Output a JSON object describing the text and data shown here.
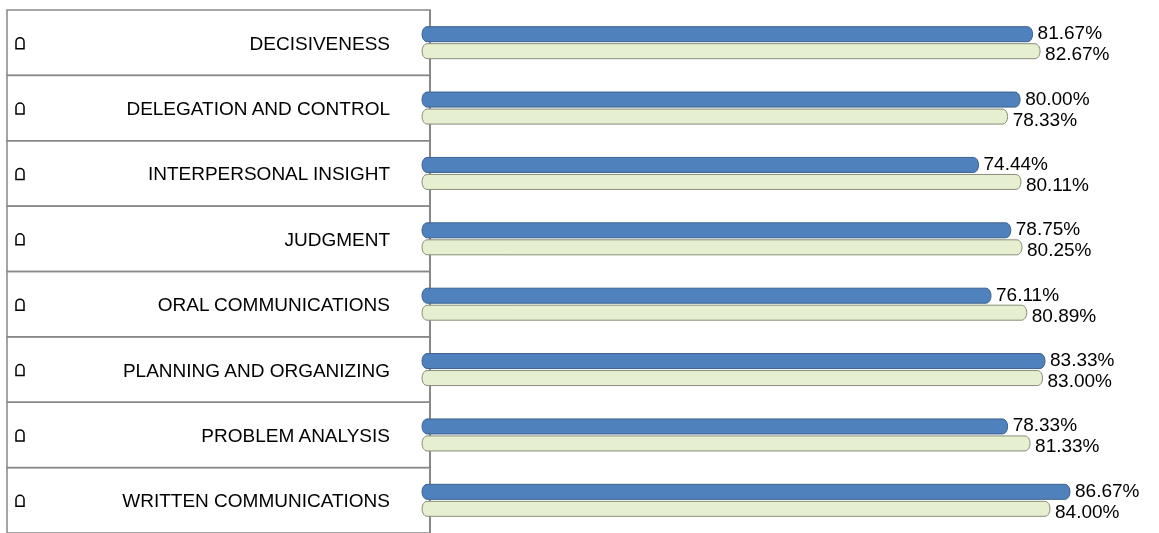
{
  "chart_data": {
    "type": "bar",
    "orientation": "horizontal",
    "categories": [
      "DECISIVENESS",
      "DELEGATION AND CONTROL",
      "INTERPERSONAL INSIGHT",
      "JUDGMENT",
      "ORAL COMMUNICATIONS",
      "PLANNING AND ORGANIZING",
      "PROBLEM ANALYSIS",
      "WRITTEN COMMUNICATIONS"
    ],
    "series": [
      {
        "color": "#4f81bd",
        "values": [
          81.67,
          80.0,
          74.44,
          78.75,
          76.11,
          83.33,
          78.33,
          86.67
        ],
        "value_labels": [
          "81.67%",
          "80.00%",
          "74.44%",
          "78.75%",
          "76.11%",
          "83.33%",
          "78.33%",
          "86.67%"
        ]
      },
      {
        "color": "#e6f0d0",
        "values": [
          82.67,
          78.33,
          80.11,
          80.25,
          80.89,
          83.0,
          81.33,
          84.0
        ],
        "value_labels": [
          "82.67%",
          "78.33%",
          "80.11%",
          "80.25%",
          "80.89%",
          "83.00%",
          "81.33%",
          "84.00%"
        ]
      }
    ]
  }
}
